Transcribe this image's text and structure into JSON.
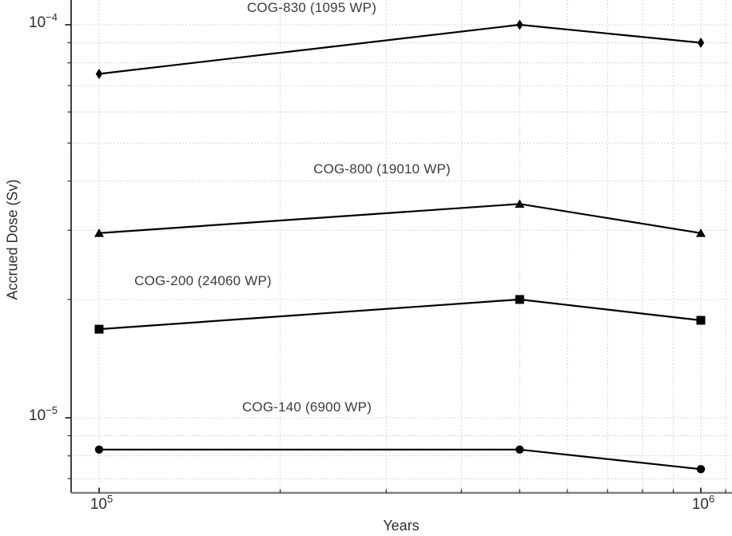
{
  "chart_data": {
    "type": "line",
    "xscale": "log",
    "yscale": "log",
    "x": [
      100000,
      500000,
      1000000
    ],
    "xlim": [
      90000,
      1122000
    ],
    "ylim": [
      6.4e-06,
      0.000116
    ],
    "grid": "dotted, major and minor, both axes",
    "legend_position": "inline annotations above each line",
    "xlabel": "Years",
    "ylabel": "Accrued Dose (Sv)",
    "series": [
      {
        "name": "COG-830 (1095 WP)",
        "marker": "thin-diamond",
        "color": "#000000",
        "values": [
          7.5e-05,
          0.0001,
          9e-05
        ]
      },
      {
        "name": "COG-800 (19010 WP)",
        "marker": "triangle-up",
        "color": "#000000",
        "values": [
          2.95e-05,
          3.5e-05,
          2.95e-05
        ]
      },
      {
        "name": "COG-200 (24060 WP)",
        "marker": "square",
        "color": "#000000",
        "values": [
          1.68e-05,
          2e-05,
          1.77e-05
        ]
      },
      {
        "name": "COG-140 (6900 WP)",
        "marker": "circle",
        "color": "#000000",
        "values": [
          8.3e-06,
          8.3e-06,
          7.4e-06
        ]
      }
    ]
  },
  "axes": {
    "x": {
      "label": "Years",
      "major_ticks": [
        {
          "value": 100000,
          "base": "10",
          "sup": "5"
        },
        {
          "value": 1000000,
          "base": "10",
          "sup": "6"
        }
      ],
      "minor_tick_values": [
        200000,
        300000,
        400000,
        500000,
        600000,
        700000,
        800000,
        900000,
        1100000
      ]
    },
    "y": {
      "label": "Accrued Dose (Sv)",
      "major_ticks": [
        {
          "value": 0.0001,
          "base": "10",
          "sup": "−4"
        },
        {
          "value": 1e-05,
          "base": "10",
          "sup": "−5"
        }
      ],
      "minor_tick_values": [
        9e-05,
        8e-05,
        7e-05,
        6e-05,
        5e-05,
        4e-05,
        3e-05,
        2e-05,
        9e-06,
        8e-06,
        7e-06
      ]
    }
  },
  "colors": {
    "line": "#000000",
    "marker": "#000000",
    "grid": "#c9c9c9",
    "left_spine": "#2b2b2b",
    "bottom_spine": "#808080",
    "tick": "#2b2b2b",
    "text": "#3c3c3c",
    "background": "#ffffff"
  }
}
